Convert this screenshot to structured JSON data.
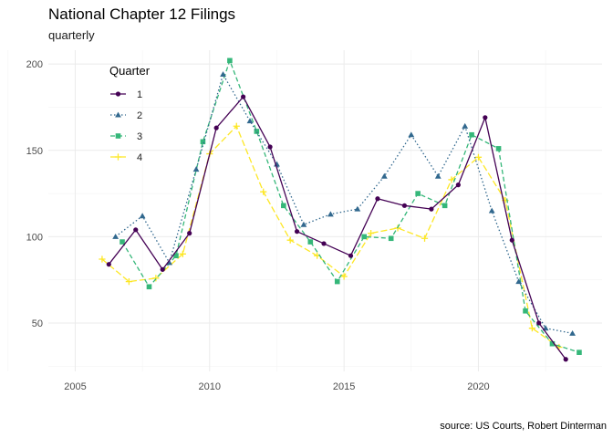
{
  "chart_data": {
    "type": "line",
    "title": "National Chapter 12 Filings",
    "subtitle": "quarterly",
    "caption": "source: US Courts, Robert Dinterman",
    "xlabel": "",
    "ylabel": "",
    "xlim": [
      2004.0,
      2024.6
    ],
    "ylim": [
      22,
      208
    ],
    "x_ticks": [
      2005,
      2010,
      2015,
      2020
    ],
    "y_ticks": [
      50,
      100,
      150,
      200
    ],
    "grid": true,
    "legend": {
      "title": "Quarter",
      "placement": "top-left"
    },
    "series": [
      {
        "name": "1",
        "color": "#440154",
        "dash": "solid",
        "marker": "circle",
        "points": [
          [
            2006.25,
            84
          ],
          [
            2007.25,
            104
          ],
          [
            2008.25,
            81
          ],
          [
            2009.25,
            102
          ],
          [
            2010.25,
            163
          ],
          [
            2011.25,
            181
          ],
          [
            2012.25,
            152
          ],
          [
            2013.25,
            103
          ],
          [
            2014.25,
            96
          ],
          [
            2015.25,
            89
          ],
          [
            2016.25,
            122
          ],
          [
            2017.25,
            118
          ],
          [
            2018.25,
            116
          ],
          [
            2019.25,
            130
          ],
          [
            2020.25,
            169
          ],
          [
            2021.25,
            98
          ],
          [
            2022.25,
            50
          ],
          [
            2023.25,
            29
          ]
        ]
      },
      {
        "name": "2",
        "color": "#31688e",
        "dash": "dotted",
        "marker": "triangle",
        "points": [
          [
            2006.5,
            100
          ],
          [
            2007.5,
            112
          ],
          [
            2008.5,
            85
          ],
          [
            2009.5,
            139
          ],
          [
            2010.5,
            194
          ],
          [
            2011.5,
            167
          ],
          [
            2012.5,
            142
          ],
          [
            2013.5,
            107
          ],
          [
            2014.5,
            113
          ],
          [
            2015.5,
            116
          ],
          [
            2016.5,
            135
          ],
          [
            2017.5,
            159
          ],
          [
            2018.5,
            135
          ],
          [
            2019.5,
            164
          ],
          [
            2020.5,
            115
          ],
          [
            2021.5,
            74
          ],
          [
            2022.5,
            47
          ],
          [
            2023.5,
            44
          ]
        ]
      },
      {
        "name": "3",
        "color": "#35b779",
        "dash": "dashed",
        "marker": "square",
        "points": [
          [
            2006.75,
            97
          ],
          [
            2007.75,
            71
          ],
          [
            2008.75,
            89
          ],
          [
            2009.75,
            155
          ],
          [
            2010.75,
            202
          ],
          [
            2011.75,
            161
          ],
          [
            2012.75,
            118
          ],
          [
            2013.75,
            97
          ],
          [
            2014.75,
            74
          ],
          [
            2015.75,
            100
          ],
          [
            2016.75,
            99
          ],
          [
            2017.75,
            125
          ],
          [
            2018.75,
            118
          ],
          [
            2019.75,
            159
          ],
          [
            2020.75,
            151
          ],
          [
            2021.75,
            57
          ],
          [
            2022.75,
            38
          ],
          [
            2023.75,
            33
          ]
        ]
      },
      {
        "name": "4",
        "color": "#fde725",
        "dash": "longdash",
        "marker": "plus",
        "points": [
          [
            2006.0,
            87
          ],
          [
            2007.0,
            74
          ],
          [
            2008.0,
            76
          ],
          [
            2009.0,
            90
          ],
          [
            2010.0,
            148
          ],
          [
            2011.0,
            164
          ],
          [
            2012.0,
            126
          ],
          [
            2013.0,
            98
          ],
          [
            2014.0,
            89
          ],
          [
            2015.0,
            77
          ],
          [
            2016.0,
            102
          ],
          [
            2017.0,
            105
          ],
          [
            2018.0,
            99
          ],
          [
            2019.0,
            133
          ],
          [
            2020.0,
            146
          ],
          [
            2021.0,
            121
          ],
          [
            2022.0,
            47
          ],
          [
            2023.0,
            36
          ]
        ]
      }
    ]
  }
}
